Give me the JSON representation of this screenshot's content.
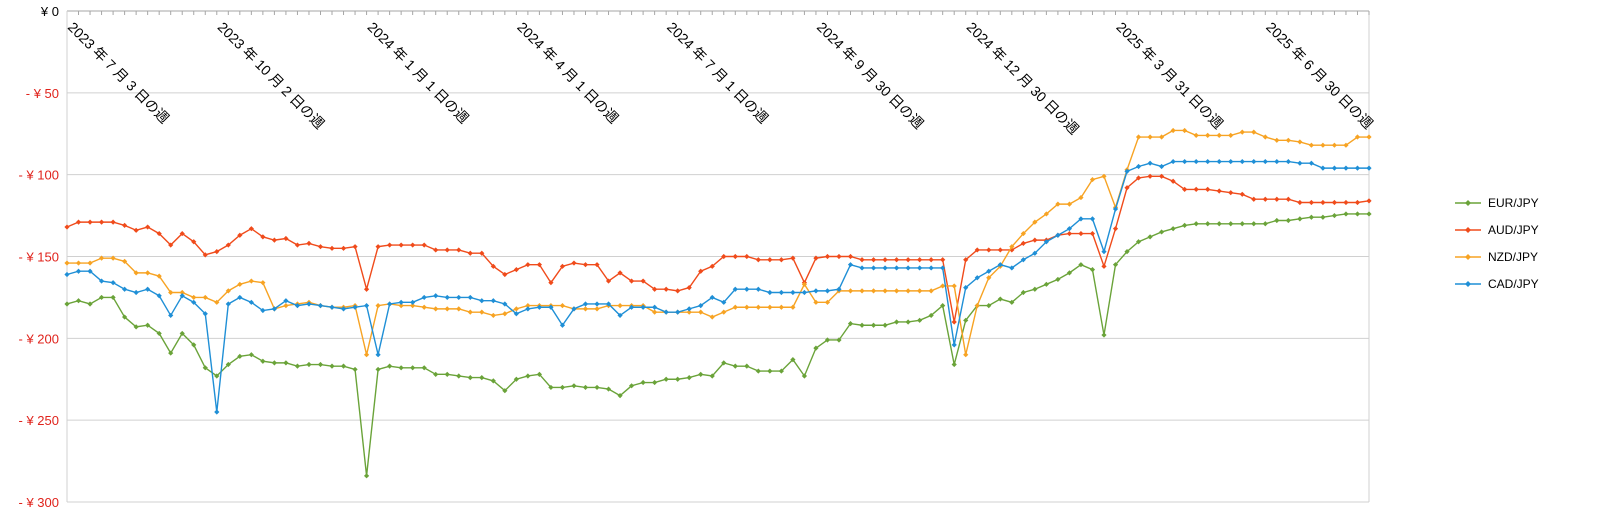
{
  "chart_data": {
    "type": "line",
    "title": "",
    "xlabel": "",
    "ylabel": "",
    "ylim": [
      -300,
      0
    ],
    "y_ticks": [
      0,
      -50,
      -100,
      -150,
      -200,
      -250,
      -300
    ],
    "y_tick_labels": [
      "¥ 0",
      "- ¥ 50",
      "- ¥ 100",
      "- ¥ 150",
      "- ¥ 200",
      "- ¥ 250",
      "- ¥ 300"
    ],
    "x_tick_labels": [
      {
        "index": 0,
        "label": "2023 年 7 月 3 日の週"
      },
      {
        "index": 13,
        "label": "2023 年 10 月 2 日の週"
      },
      {
        "index": 26,
        "label": "2024 年 1 月 1 日の週"
      },
      {
        "index": 39,
        "label": "2024 年 4 月 1 日の週"
      },
      {
        "index": 52,
        "label": "2024 年 7 月 1 日の週"
      },
      {
        "index": 65,
        "label": "2024 年 9 月 30 日の週"
      },
      {
        "index": 78,
        "label": "2024 年 12 月 30 日の週"
      },
      {
        "index": 91,
        "label": "2025 年 3 月 31 日の週"
      },
      {
        "index": 104,
        "label": "2025 年 6 月 30 日の週"
      }
    ],
    "grid": true,
    "legend_position": "right",
    "series": [
      {
        "name": "EUR/JPY",
        "color": "#6aa339",
        "values": [
          -179,
          -177,
          -179,
          -175,
          -175,
          -187,
          -193,
          -192,
          -197,
          -209,
          -197,
          -204,
          -218,
          -223,
          -216,
          -211,
          -210,
          -214,
          -215,
          -215,
          -217,
          -216,
          -216,
          -217,
          -217,
          -219,
          -284,
          -219,
          -217,
          -218,
          -218,
          -218,
          -222,
          -222,
          -223,
          -224,
          -224,
          -226,
          -232,
          -225,
          -223,
          -222,
          -230,
          -230,
          -229,
          -230,
          -230,
          -231,
          -235,
          -229,
          -227,
          -227,
          -225,
          -225,
          -224,
          -222,
          -223,
          -215,
          -217,
          -217,
          -220,
          -220,
          -220,
          -213,
          -223,
          -206,
          -201,
          -201,
          -191,
          -192,
          -192,
          -192,
          -190,
          -190,
          -189,
          -186,
          -180,
          -216,
          -189,
          -180,
          -180,
          -176,
          -178,
          -172,
          -170,
          -167,
          -164,
          -160,
          -155,
          -158,
          -198,
          -155,
          -147,
          -141,
          -138,
          -135,
          -133,
          -131,
          -130,
          -130,
          -130,
          -130,
          -130,
          -130,
          -130,
          -128,
          -128,
          -127,
          -126,
          -126,
          -125,
          -124,
          -124,
          -124
        ]
      },
      {
        "name": "AUD/JPY",
        "color": "#f04b1b",
        "values": [
          -132,
          -129,
          -129,
          -129,
          -129,
          -131,
          -134,
          -132,
          -136,
          -143,
          -136,
          -141,
          -149,
          -147,
          -143,
          -137,
          -133,
          -138,
          -140,
          -139,
          -143,
          -142,
          -144,
          -145,
          -145,
          -144,
          -170,
          -144,
          -143,
          -143,
          -143,
          -143,
          -146,
          -146,
          -146,
          -148,
          -148,
          -156,
          -161,
          -158,
          -155,
          -155,
          -166,
          -156,
          -154,
          -155,
          -155,
          -165,
          -160,
          -165,
          -165,
          -170,
          -170,
          -171,
          -169,
          -159,
          -156,
          -150,
          -150,
          -150,
          -152,
          -152,
          -152,
          -151,
          -166,
          -151,
          -150,
          -150,
          -150,
          -152,
          -152,
          -152,
          -152,
          -152,
          -152,
          -152,
          -152,
          -190,
          -152,
          -146,
          -146,
          -146,
          -146,
          -142,
          -140,
          -140,
          -137,
          -136,
          -136,
          -136,
          -156,
          -133,
          -108,
          -102,
          -101,
          -101,
          -104,
          -109,
          -109,
          -109,
          -110,
          -111,
          -112,
          -115,
          -115,
          -115,
          -115,
          -117,
          -117,
          -117,
          -117,
          -117,
          -117,
          -116
        ]
      },
      {
        "name": "NZD/JPY",
        "color": "#f7a323",
        "values": [
          -154,
          -154,
          -154,
          -151,
          -151,
          -153,
          -160,
          -160,
          -162,
          -172,
          -172,
          -175,
          -175,
          -178,
          -171,
          -167,
          -165,
          -166,
          -182,
          -180,
          -179,
          -178,
          -180,
          -181,
          -181,
          -180,
          -210,
          -180,
          -179,
          -180,
          -180,
          -181,
          -182,
          -182,
          -182,
          -184,
          -184,
          -186,
          -185,
          -182,
          -180,
          -180,
          -180,
          -180,
          -182,
          -182,
          -182,
          -180,
          -180,
          -180,
          -180,
          -184,
          -184,
          -184,
          -184,
          -184,
          -187,
          -184,
          -181,
          -181,
          -181,
          -181,
          -181,
          -181,
          -167,
          -178,
          -178,
          -171,
          -171,
          -171,
          -171,
          -171,
          -171,
          -171,
          -171,
          -171,
          -168,
          -168,
          -210,
          -180,
          -163,
          -156,
          -144,
          -136,
          -129,
          -124,
          -118,
          -118,
          -114,
          -103,
          -101,
          -120,
          -97,
          -77,
          -77,
          -77,
          -73,
          -73,
          -76,
          -76,
          -76,
          -76,
          -74,
          -74,
          -77,
          -79,
          -79,
          -80,
          -82,
          -82,
          -82,
          -82,
          -77,
          -77
        ]
      },
      {
        "name": "CAD/JPY",
        "color": "#1f8fd6",
        "values": [
          -161,
          -159,
          -159,
          -165,
          -166,
          -170,
          -172,
          -170,
          -174,
          -186,
          -174,
          -178,
          -185,
          -245,
          -179,
          -175,
          -178,
          -183,
          -182,
          -177,
          -180,
          -179,
          -180,
          -181,
          -182,
          -181,
          -180,
          -210,
          -179,
          -178,
          -178,
          -175,
          -174,
          -175,
          -175,
          -175,
          -177,
          -177,
          -179,
          -185,
          -182,
          -181,
          -181,
          -192,
          -182,
          -179,
          -179,
          -179,
          -186,
          -181,
          -181,
          -181,
          -184,
          -184,
          -182,
          -180,
          -175,
          -178,
          -170,
          -170,
          -170,
          -172,
          -172,
          -172,
          -172,
          -171,
          -171,
          -170,
          -155,
          -157,
          -157,
          -157,
          -157,
          -157,
          -157,
          -157,
          -157,
          -204,
          -169,
          -163,
          -159,
          -155,
          -157,
          -152,
          -148,
          -141,
          -137,
          -133,
          -127,
          -127,
          -147,
          -121,
          -98,
          -95,
          -93,
          -95,
          -92,
          -92,
          -92,
          -92,
          -92,
          -92,
          -92,
          -92,
          -92,
          -92,
          -92,
          -93,
          -93,
          -96,
          -96,
          -96,
          -96,
          -96
        ]
      }
    ]
  }
}
